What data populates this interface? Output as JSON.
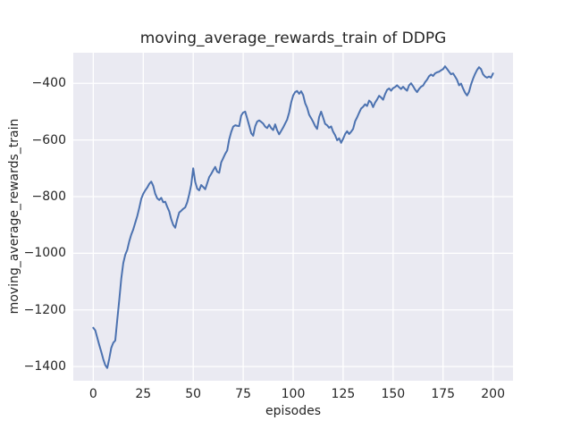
{
  "figure": {
    "background": "#ffffff"
  },
  "chart_data": {
    "type": "line",
    "title": "moving_average_rewards_train of DDPG",
    "xlabel": "episodes",
    "ylabel": "moving_average_rewards_train",
    "xlim": [
      -10,
      210
    ],
    "ylim": [
      -1450,
      -292
    ],
    "grid": true,
    "legend": false,
    "x_ticks": [
      {
        "value": 0,
        "label": "0"
      },
      {
        "value": 25,
        "label": "25"
      },
      {
        "value": 50,
        "label": "50"
      },
      {
        "value": 75,
        "label": "75"
      },
      {
        "value": 100,
        "label": "100"
      },
      {
        "value": 125,
        "label": "125"
      },
      {
        "value": 150,
        "label": "150"
      },
      {
        "value": 175,
        "label": "175"
      },
      {
        "value": 200,
        "label": "200"
      }
    ],
    "y_ticks": [
      {
        "value": -400,
        "label": "−400"
      },
      {
        "value": -600,
        "label": "−600"
      },
      {
        "value": -800,
        "label": "−800"
      },
      {
        "value": -1000,
        "label": "−1000"
      },
      {
        "value": -1200,
        "label": "−1200"
      },
      {
        "value": -1400,
        "label": "−1400"
      }
    ],
    "style": {
      "axes_background": "#EAEAF2",
      "grid_color": "#FFFFFF",
      "grid_width": 1.3,
      "line_color": "#4C72B0",
      "line_width": 2,
      "text_color": "#262626"
    },
    "series": [
      {
        "name": "moving_average_rewards_train",
        "x_start": 0,
        "x_step": 1,
        "y_values": [
          -1263,
          -1272,
          -1298,
          -1324,
          -1348,
          -1374,
          -1395,
          -1405,
          -1372,
          -1334,
          -1316,
          -1308,
          -1235,
          -1165,
          -1090,
          -1035,
          -1005,
          -988,
          -958,
          -934,
          -916,
          -892,
          -869,
          -840,
          -808,
          -790,
          -778,
          -768,
          -755,
          -747,
          -762,
          -790,
          -806,
          -812,
          -804,
          -820,
          -818,
          -836,
          -852,
          -880,
          -900,
          -910,
          -880,
          -856,
          -850,
          -843,
          -838,
          -820,
          -792,
          -758,
          -700,
          -748,
          -772,
          -778,
          -759,
          -766,
          -774,
          -753,
          -731,
          -720,
          -707,
          -695,
          -712,
          -716,
          -679,
          -664,
          -649,
          -637,
          -598,
          -572,
          -553,
          -548,
          -550,
          -551,
          -514,
          -503,
          -500,
          -524,
          -549,
          -576,
          -585,
          -552,
          -535,
          -531,
          -536,
          -542,
          -553,
          -558,
          -546,
          -558,
          -565,
          -545,
          -566,
          -580,
          -568,
          -556,
          -542,
          -528,
          -503,
          -468,
          -443,
          -431,
          -427,
          -437,
          -428,
          -441,
          -470,
          -486,
          -511,
          -523,
          -536,
          -551,
          -561,
          -519,
          -500,
          -521,
          -543,
          -548,
          -557,
          -552,
          -571,
          -583,
          -601,
          -594,
          -610,
          -596,
          -579,
          -569,
          -579,
          -571,
          -561,
          -534,
          -520,
          -504,
          -489,
          -483,
          -474,
          -480,
          -461,
          -467,
          -484,
          -468,
          -457,
          -444,
          -450,
          -458,
          -438,
          -423,
          -418,
          -426,
          -417,
          -413,
          -407,
          -414,
          -420,
          -412,
          -420,
          -426,
          -407,
          -400,
          -410,
          -422,
          -431,
          -420,
          -412,
          -408,
          -396,
          -387,
          -375,
          -369,
          -374,
          -365,
          -361,
          -359,
          -354,
          -350,
          -340,
          -349,
          -359,
          -368,
          -365,
          -376,
          -388,
          -407,
          -401,
          -418,
          -433,
          -443,
          -430,
          -404,
          -384,
          -367,
          -353,
          -343,
          -350,
          -368,
          -376,
          -380,
          -376,
          -380,
          -365
        ]
      }
    ]
  }
}
